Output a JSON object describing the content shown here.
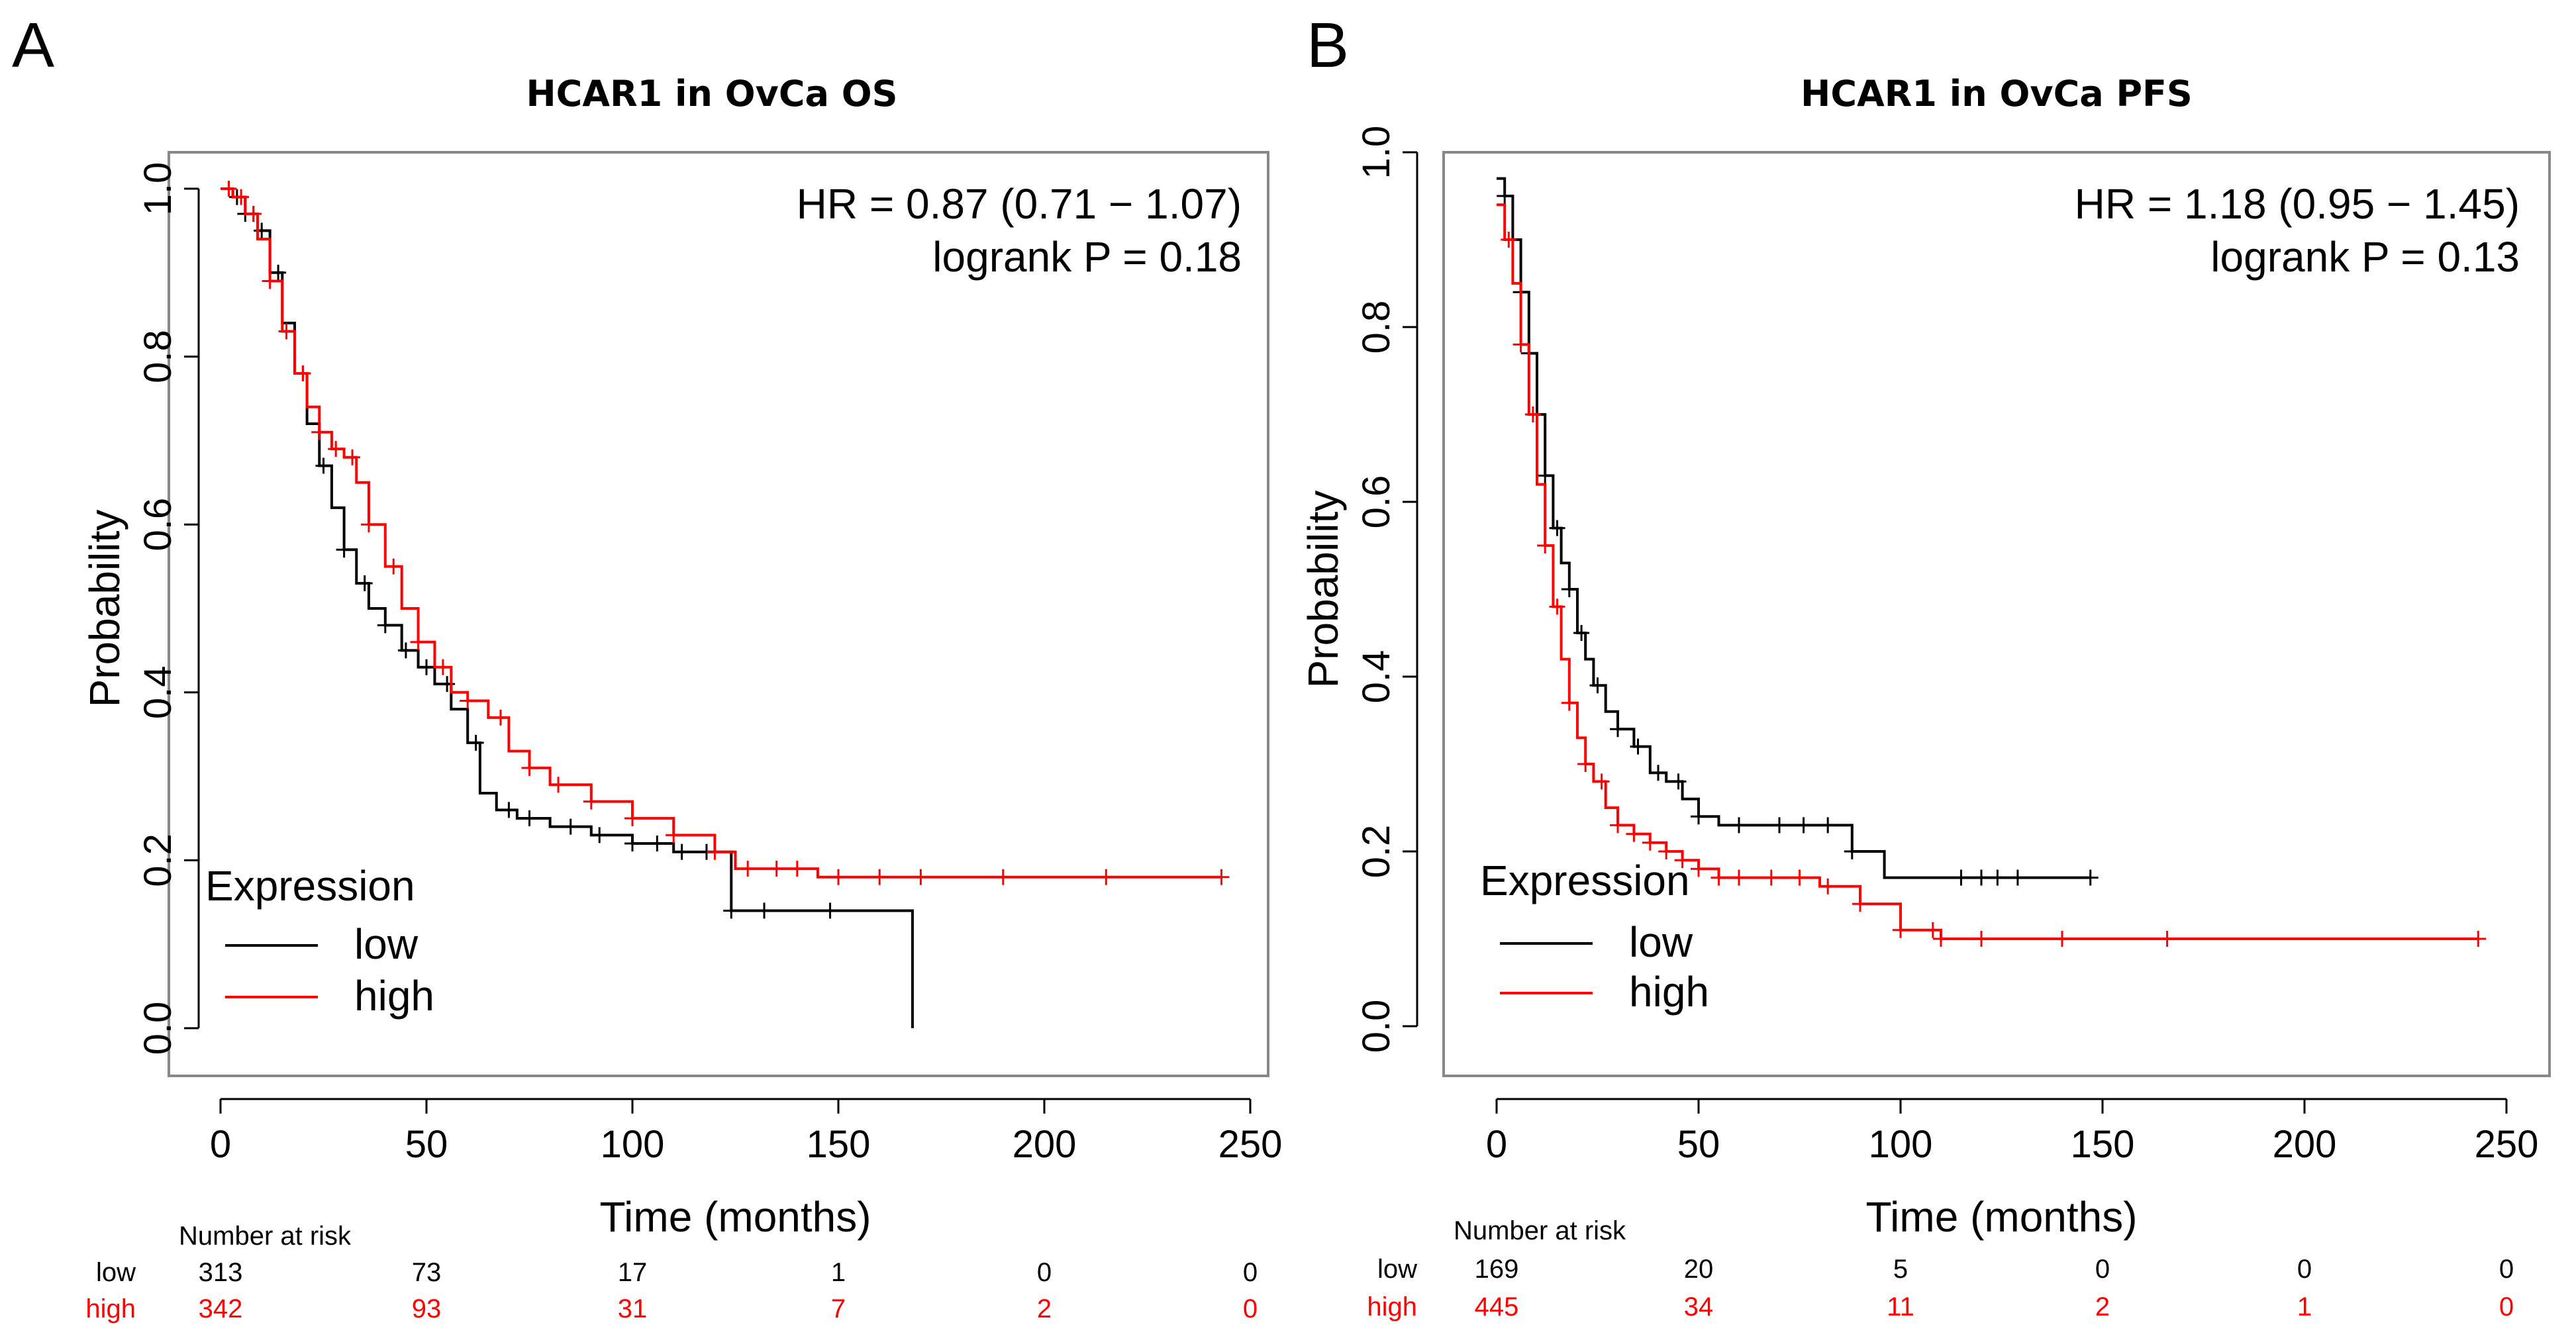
{
  "chart_data": [
    {
      "panel_letter": "A",
      "type": "line",
      "subtype": "kaplan-meier",
      "title": "HCAR1 in OvCa OS",
      "xlabel": "Time (months)",
      "ylabel": "Probability",
      "xlim": [
        0,
        250
      ],
      "ylim": [
        0,
        1.0
      ],
      "xticks": [
        "0",
        "50",
        "100",
        "150",
        "200",
        "250"
      ],
      "yticks": [
        "0.0",
        "0.2",
        "0.4",
        "0.6",
        "0.8",
        "1.0"
      ],
      "annotation_hr": "HR = 0.87 (0.71 − 1.07)",
      "annotation_p": "logrank P = 0.18",
      "legend_title": "Expression",
      "legend_position": "bottom-left",
      "colors": {
        "low": "#000000",
        "high": "#ff0000"
      },
      "series": [
        {
          "name": "low",
          "x": [
            0,
            3,
            6,
            9,
            12,
            15,
            18,
            21,
            24,
            27,
            30,
            33,
            36,
            40,
            44,
            48,
            52,
            56,
            60,
            63,
            67,
            72,
            80,
            90,
            100,
            110,
            120,
            124,
            133,
            145,
            168,
            168
          ],
          "y": [
            1.0,
            0.99,
            0.97,
            0.95,
            0.9,
            0.84,
            0.78,
            0.72,
            0.67,
            0.62,
            0.57,
            0.53,
            0.5,
            0.48,
            0.45,
            0.43,
            0.41,
            0.38,
            0.34,
            0.28,
            0.26,
            0.25,
            0.24,
            0.23,
            0.22,
            0.21,
            0.21,
            0.14,
            0.14,
            0.14,
            0.14,
            0.0
          ],
          "censor_x": [
            2,
            4,
            6,
            8,
            10,
            14,
            20,
            25,
            30,
            35,
            40,
            45,
            50,
            55,
            62,
            70,
            75,
            85,
            92,
            100,
            106,
            112,
            118,
            124,
            132,
            148
          ]
        },
        {
          "name": "high",
          "x": [
            0,
            3,
            6,
            9,
            12,
            15,
            18,
            21,
            24,
            27,
            30,
            33,
            36,
            40,
            44,
            48,
            52,
            56,
            60,
            65,
            70,
            75,
            80,
            90,
            100,
            110,
            120,
            125,
            145,
            243
          ],
          "y": [
            1.0,
            0.99,
            0.97,
            0.94,
            0.89,
            0.83,
            0.78,
            0.74,
            0.71,
            0.69,
            0.68,
            0.65,
            0.6,
            0.55,
            0.5,
            0.46,
            0.43,
            0.4,
            0.39,
            0.37,
            0.33,
            0.31,
            0.29,
            0.27,
            0.25,
            0.23,
            0.21,
            0.19,
            0.18,
            0.18
          ],
          "censor_x": [
            2,
            5,
            8,
            12,
            16,
            20,
            24,
            28,
            32,
            36,
            42,
            48,
            54,
            60,
            68,
            75,
            82,
            90,
            100,
            110,
            120,
            128,
            135,
            140,
            150,
            160,
            170,
            190,
            215,
            243
          ]
        }
      ],
      "risk_table": {
        "title": "Number at risk",
        "rows": [
          {
            "label": "low",
            "values": [
              "313",
              "73",
              "17",
              "1",
              "0",
              "0"
            ]
          },
          {
            "label": "high",
            "values": [
              "342",
              "93",
              "31",
              "7",
              "2",
              "0"
            ]
          }
        ]
      }
    },
    {
      "panel_letter": "B",
      "type": "line",
      "subtype": "kaplan-meier",
      "title": "HCAR1 in OvCa PFS",
      "xlabel": "Time (months)",
      "ylabel": "Probability",
      "xlim": [
        0,
        250
      ],
      "ylim": [
        0,
        1.0
      ],
      "xticks": [
        "0",
        "50",
        "100",
        "150",
        "200",
        "250"
      ],
      "yticks": [
        "0.0",
        "0.2",
        "0.4",
        "0.6",
        "0.8",
        "1.0"
      ],
      "annotation_hr": "HR = 1.18 (0.95 − 1.45)",
      "annotation_p": "logrank P = 0.13",
      "legend_title": "Expression",
      "legend_position": "bottom-left",
      "colors": {
        "low": "#000000",
        "high": "#ff0000"
      },
      "series": [
        {
          "name": "low",
          "x": [
            0,
            2,
            4,
            6,
            8,
            10,
            12,
            14,
            16,
            18,
            20,
            22,
            24,
            27,
            30,
            34,
            38,
            42,
            46,
            50,
            55,
            60,
            70,
            80,
            88,
            96,
            120,
            147
          ],
          "y": [
            0.97,
            0.95,
            0.9,
            0.84,
            0.77,
            0.7,
            0.63,
            0.57,
            0.53,
            0.5,
            0.45,
            0.42,
            0.39,
            0.36,
            0.34,
            0.32,
            0.29,
            0.28,
            0.26,
            0.24,
            0.23,
            0.23,
            0.23,
            0.23,
            0.2,
            0.17,
            0.17,
            0.17
          ],
          "censor_x": [
            2,
            4,
            6,
            8,
            10,
            12,
            15,
            18,
            21,
            25,
            30,
            35,
            40,
            45,
            50,
            60,
            70,
            76,
            82,
            88,
            115,
            120,
            124,
            129,
            147
          ]
        },
        {
          "name": "high",
          "x": [
            0,
            2,
            4,
            6,
            8,
            10,
            12,
            14,
            16,
            18,
            20,
            22,
            24,
            27,
            30,
            34,
            38,
            42,
            46,
            50,
            55,
            60,
            70,
            80,
            90,
            100,
            110,
            243
          ],
          "y": [
            0.94,
            0.9,
            0.85,
            0.78,
            0.7,
            0.62,
            0.55,
            0.48,
            0.42,
            0.37,
            0.33,
            0.3,
            0.28,
            0.25,
            0.23,
            0.22,
            0.21,
            0.2,
            0.19,
            0.18,
            0.17,
            0.17,
            0.17,
            0.16,
            0.14,
            0.11,
            0.1,
            0.1
          ],
          "censor_x": [
            3,
            6,
            9,
            12,
            15,
            18,
            22,
            26,
            30,
            34,
            38,
            42,
            46,
            50,
            55,
            60,
            68,
            75,
            82,
            90,
            100,
            108,
            110,
            120,
            140,
            166,
            243
          ]
        }
      ],
      "risk_table": {
        "title": "Number at risk",
        "rows": [
          {
            "label": "low",
            "values": [
              "169",
              "20",
              "5",
              "0",
              "0",
              "0"
            ]
          },
          {
            "label": "high",
            "values": [
              "445",
              "34",
              "11",
              "2",
              "1",
              "0"
            ]
          }
        ]
      }
    }
  ]
}
